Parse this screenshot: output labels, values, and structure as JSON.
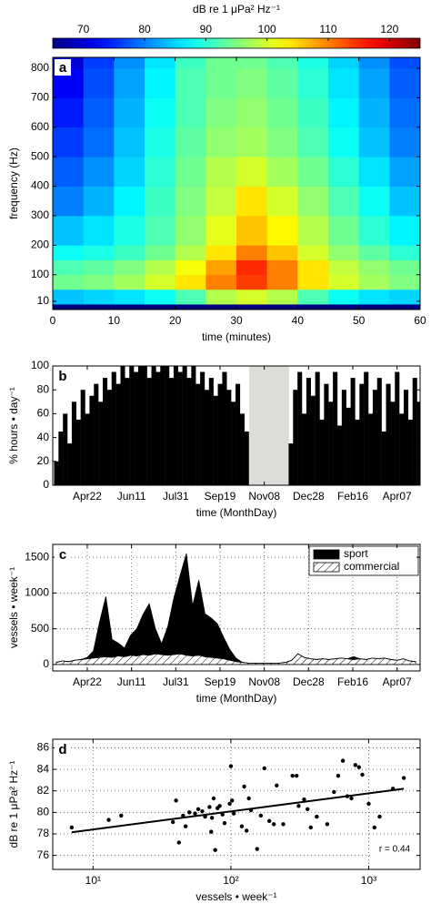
{
  "chart_data": [
    {
      "type": "heatmap",
      "panel_label": "a",
      "colorbar_title": "dB re 1 μPa² Hz⁻¹",
      "colormap": "jet",
      "clim": [
        65,
        125
      ],
      "cticks": [
        70,
        80,
        90,
        100,
        110,
        120
      ],
      "xlabel": "time (minutes)",
      "ylabel": "frequency (Hz)",
      "xlim": [
        0,
        60
      ],
      "ylim": [
        -18,
        837
      ],
      "xticks": [
        0,
        10,
        20,
        30,
        40,
        50,
        60
      ],
      "yticks": [
        10,
        100,
        200,
        300,
        400,
        500,
        600,
        700,
        800
      ],
      "x_edges": [
        0,
        5,
        10,
        15,
        20,
        25,
        30,
        35,
        40,
        45,
        50,
        55,
        60
      ],
      "y_edges": [
        0,
        50,
        100,
        150,
        200,
        300,
        400,
        500,
        600,
        700,
        800,
        860
      ],
      "values": [
        [
          84,
          85,
          86,
          88,
          92,
          98,
          100,
          98,
          92,
          88,
          86,
          85
        ],
        [
          94,
          95,
          97,
          100,
          104,
          110,
          114,
          110,
          104,
          100,
          97,
          95
        ],
        [
          92,
          93,
          95,
          98,
          102,
          108,
          115,
          110,
          104,
          99,
          96,
          94
        ],
        [
          88,
          89,
          91,
          94,
          98,
          104,
          110,
          106,
          100,
          96,
          93,
          90
        ],
        [
          84,
          86,
          89,
          92,
          96,
          101,
          106,
          103,
          98,
          94,
          90,
          87
        ],
        [
          80,
          83,
          87,
          91,
          95,
          99,
          104,
          100,
          96,
          92,
          88,
          84
        ],
        [
          78,
          81,
          85,
          90,
          94,
          98,
          100,
          97,
          94,
          90,
          86,
          82
        ],
        [
          76,
          79,
          84,
          89,
          93,
          96,
          97,
          95,
          92,
          88,
          84,
          80
        ],
        [
          74,
          78,
          83,
          88,
          92,
          95,
          96,
          94,
          91,
          87,
          83,
          79
        ],
        [
          72,
          77,
          82,
          87,
          92,
          94,
          95,
          93,
          90,
          86,
          82,
          78
        ],
        [
          70,
          76,
          81,
          86,
          91,
          94,
          94,
          92,
          89,
          85,
          81,
          77
        ]
      ]
    },
    {
      "type": "bar",
      "panel_label": "b",
      "xlabel": "time (MonthDay)",
      "ylabel": "% hours • day⁻¹",
      "color": "#000000",
      "no_data_span": [
        183,
        228
      ],
      "no_data_color": "#dcdcd8",
      "xlim": [
        -39,
        376
      ],
      "ylim": [
        0,
        100
      ],
      "yticks": [
        0,
        20,
        40,
        60,
        80,
        100
      ],
      "xticks": [
        {
          "value": 0,
          "label": "Apr22"
        },
        {
          "value": 50,
          "label": "Jun11"
        },
        {
          "value": 100,
          "label": "Jul31"
        },
        {
          "value": 150,
          "label": "Sep19"
        },
        {
          "value": 200,
          "label": "Nov08"
        },
        {
          "value": 250,
          "label": "Dec28"
        },
        {
          "value": 300,
          "label": "Feb16"
        },
        {
          "value": 350,
          "label": "Apr07"
        }
      ],
      "x": [
        -35,
        -30,
        -25,
        -20,
        -15,
        -10,
        -5,
        0,
        5,
        10,
        15,
        20,
        25,
        30,
        35,
        40,
        45,
        50,
        55,
        60,
        65,
        70,
        75,
        80,
        85,
        90,
        95,
        100,
        105,
        110,
        115,
        120,
        125,
        130,
        135,
        140,
        145,
        150,
        155,
        160,
        165,
        170,
        175,
        180,
        230,
        235,
        240,
        245,
        250,
        255,
        260,
        265,
        270,
        275,
        280,
        285,
        290,
        295,
        300,
        305,
        310,
        315,
        320,
        325,
        330,
        335,
        340,
        345,
        350,
        355,
        360,
        365,
        370,
        375
      ],
      "values": [
        20,
        45,
        60,
        35,
        70,
        55,
        80,
        60,
        75,
        85,
        70,
        90,
        80,
        95,
        85,
        100,
        90,
        100,
        95,
        100,
        100,
        90,
        100,
        95,
        100,
        100,
        90,
        100,
        95,
        100,
        90,
        100,
        85,
        95,
        80,
        90,
        75,
        85,
        95,
        80,
        70,
        85,
        60,
        45,
        35,
        80,
        95,
        60,
        90,
        75,
        95,
        55,
        85,
        70,
        95,
        50,
        80,
        65,
        90,
        55,
        85,
        95,
        60,
        80,
        90,
        45,
        85,
        70,
        95,
        60,
        80,
        55,
        90,
        70
      ]
    },
    {
      "type": "area",
      "panel_label": "c",
      "xlabel": "time (MonthDay)",
      "ylabel": "vessels • week⁻¹",
      "grid": true,
      "legend": "upper right",
      "xlim": [
        -39,
        376
      ],
      "ylim": [
        -90,
        1680
      ],
      "yticks": [
        0,
        500,
        1000,
        1500
      ],
      "xticks": [
        {
          "value": 0,
          "label": "Apr22"
        },
        {
          "value": 50,
          "label": "Jun11"
        },
        {
          "value": 100,
          "label": "Jul31"
        },
        {
          "value": 150,
          "label": "Sep19"
        },
        {
          "value": 200,
          "label": "Nov08"
        },
        {
          "value": 250,
          "label": "Dec28"
        },
        {
          "value": 300,
          "label": "Feb16"
        },
        {
          "value": 350,
          "label": "Apr07"
        }
      ],
      "x": [
        -35,
        -28,
        -21,
        -14,
        -7,
        0,
        7,
        14,
        21,
        28,
        35,
        42,
        49,
        56,
        63,
        70,
        77,
        84,
        91,
        98,
        105,
        112,
        119,
        126,
        133,
        140,
        147,
        154,
        161,
        168,
        175,
        182,
        189,
        196,
        203,
        210,
        217,
        224,
        231,
        238,
        245,
        252,
        259,
        266,
        273,
        280,
        287,
        294,
        301,
        308,
        315,
        322,
        329,
        336,
        343,
        350,
        357,
        364,
        371
      ],
      "series": [
        {
          "name": "sport",
          "color": "#000000",
          "pattern": "solid",
          "values": [
            0,
            0,
            0,
            0,
            0,
            20,
            100,
            500,
            840,
            250,
            180,
            120,
            280,
            380,
            560,
            720,
            350,
            150,
            400,
            800,
            1100,
            1420,
            700,
            1050,
            600,
            550,
            480,
            300,
            150,
            50,
            0,
            0,
            0,
            0,
            0,
            0,
            0,
            0,
            0,
            0,
            0,
            0,
            0,
            0,
            0,
            0,
            0,
            0,
            40,
            0,
            0,
            0,
            0,
            0,
            0,
            0,
            0,
            0,
            0
          ]
        },
        {
          "name": "commercial",
          "color": "#000000",
          "pattern": "hatch",
          "values": [
            30,
            50,
            40,
            60,
            70,
            80,
            90,
            100,
            110,
            100,
            120,
            110,
            130,
            120,
            140,
            130,
            150,
            140,
            130,
            140,
            150,
            130,
            120,
            130,
            110,
            100,
            90,
            80,
            60,
            40,
            30,
            20,
            20,
            20,
            20,
            20,
            20,
            30,
            60,
            150,
            100,
            80,
            70,
            80,
            70,
            80,
            90,
            80,
            70,
            80,
            70,
            90,
            80,
            90,
            70,
            60,
            80,
            50,
            40
          ]
        }
      ]
    },
    {
      "type": "scatter",
      "panel_label": "d",
      "xlabel": "vessels • week⁻¹",
      "ylabel": "dB re 1 μPa² Hz⁻¹",
      "grid": true,
      "xscale": "log",
      "color": "#000000",
      "annotation": "r = 0.44",
      "xlim": [
        5.1,
        2360
      ],
      "ylim": [
        74.7,
        86.8
      ],
      "yticks": [
        76,
        78,
        80,
        82,
        84,
        86
      ],
      "xticks": [
        {
          "value": 10,
          "label": "10¹"
        },
        {
          "value": 100,
          "label": "10²"
        },
        {
          "value": 1000,
          "label": "10³"
        }
      ],
      "x": [
        7,
        13,
        16,
        38,
        40,
        42,
        45,
        47,
        50,
        55,
        58,
        62,
        65,
        70,
        72,
        73,
        75,
        77,
        80,
        83,
        87,
        90,
        98,
        100,
        102,
        105,
        120,
        125,
        130,
        135,
        140,
        155,
        165,
        175,
        190,
        205,
        215,
        240,
        280,
        300,
        310,
        340,
        360,
        380,
        420,
        500,
        560,
        600,
        650,
        700,
        750,
        800,
        850,
        900,
        1000,
        1100,
        1200,
        1500,
        1800
      ],
      "y": [
        78.6,
        79.3,
        79.7,
        79.1,
        81.1,
        77.2,
        79.7,
        78.7,
        80.0,
        79.9,
        80.3,
        80.1,
        79.6,
        80.5,
        78.2,
        79.5,
        81.3,
        76.5,
        80.4,
        80.6,
        79.8,
        79.0,
        80.8,
        84.3,
        81.1,
        79.9,
        78.7,
        82.4,
        78.3,
        81.3,
        80.2,
        76.6,
        79.7,
        84.1,
        79.2,
        78.9,
        82.5,
        78.9,
        83.4,
        83.4,
        80.6,
        81.2,
        80.3,
        78.6,
        79.6,
        78.9,
        81.9,
        83.4,
        84.8,
        81.5,
        81.3,
        84.4,
        84.2,
        83.5,
        80.8,
        78.6,
        79.6,
        82.2,
        83.2
      ],
      "fit": {
        "x": [
          7,
          1800
        ],
        "y": [
          78.15,
          82.2
        ]
      }
    }
  ]
}
